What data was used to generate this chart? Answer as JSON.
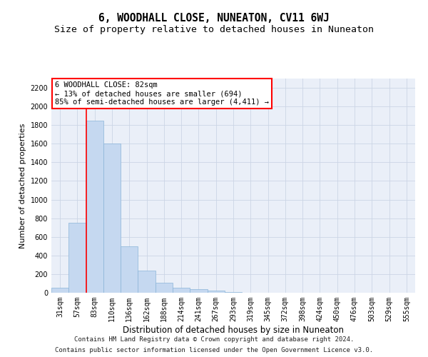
{
  "title": "6, WOODHALL CLOSE, NUNEATON, CV11 6WJ",
  "subtitle": "Size of property relative to detached houses in Nuneaton",
  "xlabel": "Distribution of detached houses by size in Nuneaton",
  "ylabel": "Number of detached properties",
  "categories": [
    "31sqm",
    "57sqm",
    "83sqm",
    "110sqm",
    "136sqm",
    "162sqm",
    "188sqm",
    "214sqm",
    "241sqm",
    "267sqm",
    "293sqm",
    "319sqm",
    "345sqm",
    "372sqm",
    "398sqm",
    "424sqm",
    "450sqm",
    "476sqm",
    "503sqm",
    "529sqm",
    "555sqm"
  ],
  "values": [
    50,
    750,
    1850,
    1600,
    500,
    240,
    110,
    55,
    35,
    20,
    5,
    2,
    1,
    0,
    0,
    0,
    0,
    0,
    0,
    0,
    0
  ],
  "bar_color": "#c5d8f0",
  "bar_edge_color": "#8ab4d8",
  "bar_linewidth": 0.5,
  "annotation_line1": "6 WOODHALL CLOSE: 82sqm",
  "annotation_line2": "← 13% of detached houses are smaller (694)",
  "annotation_line3": "85% of semi-detached houses are larger (4,411) →",
  "red_line_x": 1.5,
  "ylim": [
    0,
    2300
  ],
  "yticks": [
    0,
    200,
    400,
    600,
    800,
    1000,
    1200,
    1400,
    1600,
    1800,
    2000,
    2200
  ],
  "grid_color": "#ccd5e5",
  "background_color": "#eaeff8",
  "footer_line1": "Contains HM Land Registry data © Crown copyright and database right 2024.",
  "footer_line2": "Contains public sector information licensed under the Open Government Licence v3.0.",
  "title_fontsize": 10.5,
  "subtitle_fontsize": 9.5,
  "xlabel_fontsize": 8.5,
  "ylabel_fontsize": 8,
  "tick_fontsize": 7,
  "annotation_fontsize": 7.5,
  "footer_fontsize": 6.5
}
